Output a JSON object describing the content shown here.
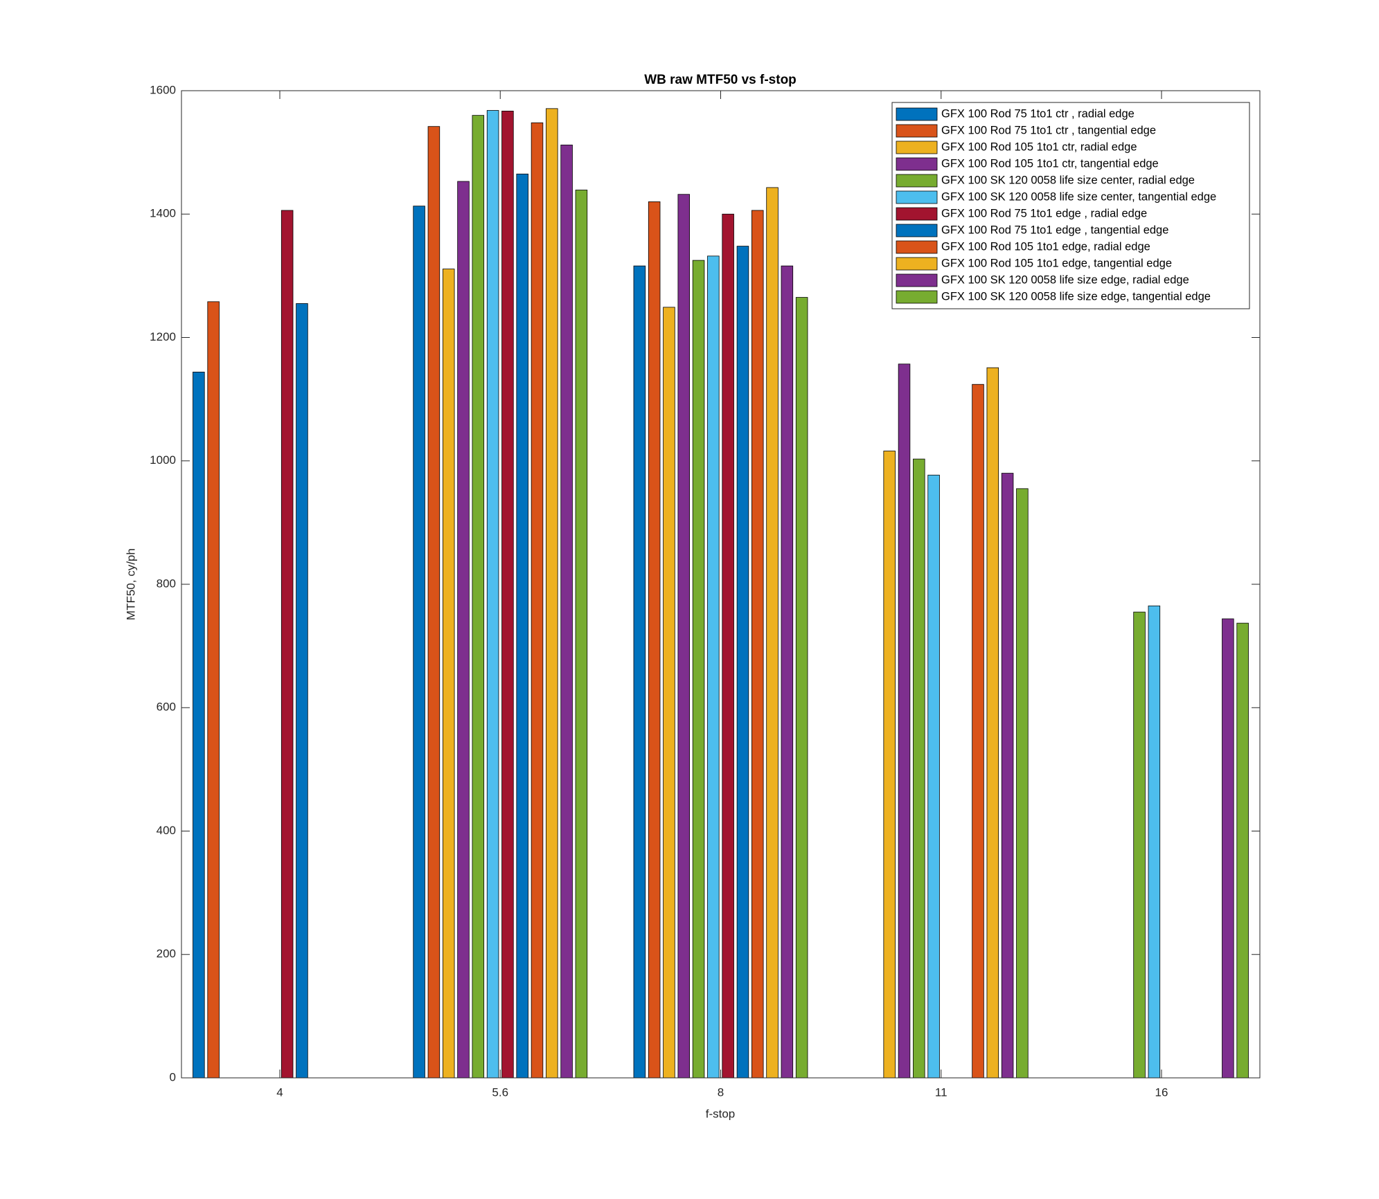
{
  "chart_data": {
    "type": "bar",
    "title": "WB raw MTF50 vs f-stop",
    "x_label": "f-stop",
    "y_label": "MTF50, cy/ph",
    "categories": [
      "4",
      "5.6",
      "8",
      "11",
      "16"
    ],
    "ylim": [
      0,
      1600
    ],
    "yticks": [
      0,
      200,
      400,
      600,
      800,
      1000,
      1200,
      1400,
      1600
    ],
    "legend_location": "northeast",
    "series": [
      {
        "name": "GFX 100 Rod 75 1to1 ctr , radial edge",
        "color": "#0072BD",
        "values": [
          1144,
          1413,
          1316,
          null,
          null
        ]
      },
      {
        "name": "GFX 100 Rod 75 1to1 ctr , tangential edge",
        "color": "#D95319",
        "values": [
          1258,
          1542,
          1420,
          null,
          null
        ]
      },
      {
        "name": "GFX 100 Rod 105 1to1 ctr, radial edge",
        "color": "#EDB120",
        "values": [
          null,
          1311,
          1249,
          1016,
          null
        ]
      },
      {
        "name": "GFX 100 Rod 105 1to1 ctr, tangential edge",
        "color": "#7E2F8E",
        "values": [
          null,
          1453,
          1432,
          1157,
          null
        ]
      },
      {
        "name": "GFX 100 SK 120 0058 life size center, radial edge",
        "color": "#77AC30",
        "values": [
          null,
          1560,
          1325,
          1003,
          755
        ]
      },
      {
        "name": "GFX 100 SK 120 0058 life size center, tangential edge",
        "color": "#4DBEEE",
        "values": [
          null,
          1568,
          1332,
          977,
          765
        ]
      },
      {
        "name": "GFX 100 Rod 75 1to1 edge , radial edge",
        "color": "#A2142F",
        "values": [
          1406,
          1567,
          1400,
          null,
          null
        ]
      },
      {
        "name": "GFX 100 Rod 75 1to1 edge , tangential edge",
        "color": "#0072BD",
        "values": [
          1255,
          1465,
          1348,
          null,
          null
        ]
      },
      {
        "name": "GFX 100 Rod 105 1to1 edge, radial edge",
        "color": "#D95319",
        "values": [
          null,
          1548,
          1406,
          1124,
          null
        ]
      },
      {
        "name": "GFX 100 Rod 105 1to1 edge, tangential edge",
        "color": "#EDB120",
        "values": [
          null,
          1571,
          1443,
          1151,
          null
        ]
      },
      {
        "name": "GFX 100 SK 120 0058 life size edge, radial edge",
        "color": "#7E2F8E",
        "values": [
          null,
          1512,
          1316,
          980,
          744
        ]
      },
      {
        "name": "GFX 100 SK 120 0058 life size edge, tangential edge",
        "color": "#77AC30",
        "values": [
          null,
          1439,
          1265,
          955,
          737
        ]
      }
    ]
  }
}
